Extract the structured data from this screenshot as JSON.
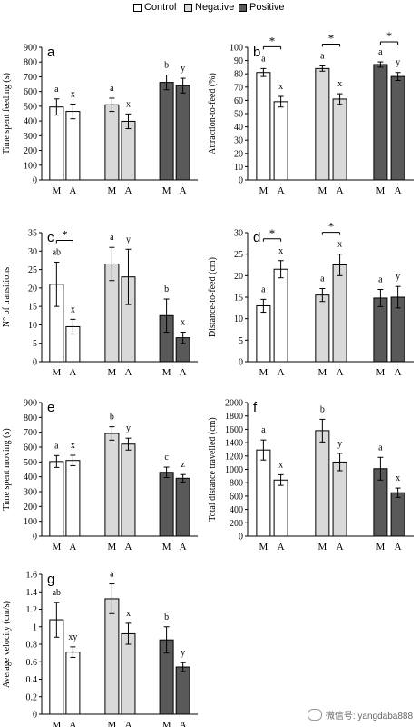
{
  "legend": {
    "items": [
      {
        "label": "Control",
        "color": "#ffffff"
      },
      {
        "label": "Negative",
        "color": "#d9d9d9"
      },
      {
        "label": "Positive",
        "color": "#595959"
      }
    ]
  },
  "watermark": {
    "text": "微信号: yangdaba888"
  },
  "chart_data": [
    {
      "type": "bar",
      "panel": "a",
      "ylabel": "Time spent feeding (s)",
      "ylim": [
        0,
        900
      ],
      "yticks": [
        0,
        100,
        200,
        300,
        400,
        500,
        600,
        700,
        800,
        900
      ],
      "categories": [
        "M",
        "A",
        "M",
        "A",
        "M",
        "A"
      ],
      "groups": [
        "Control",
        "Negative",
        "Positive"
      ],
      "values": [
        495,
        465,
        510,
        398,
        662,
        640
      ],
      "errors": [
        55,
        50,
        45,
        50,
        50,
        50
      ],
      "letters": [
        "a",
        "x",
        "a",
        "x",
        "b",
        "y"
      ],
      "sig": []
    },
    {
      "type": "bar",
      "panel": "b",
      "ylabel": "Attraction-to-feed (%)",
      "ylim": [
        0,
        100
      ],
      "yticks": [
        0,
        10,
        20,
        30,
        40,
        50,
        60,
        70,
        80,
        90,
        100
      ],
      "categories": [
        "M",
        "A",
        "M",
        "A",
        "M",
        "A"
      ],
      "groups": [
        "Control",
        "Negative",
        "Positive"
      ],
      "values": [
        81,
        59,
        84,
        61,
        87,
        78
      ],
      "errors": [
        3,
        4,
        2,
        4,
        2,
        3
      ],
      "letters": [
        "a",
        "x",
        "a",
        "x",
        "a",
        "y"
      ],
      "sig": [
        [
          0,
          1
        ],
        [
          2,
          3
        ],
        [
          4,
          5
        ]
      ]
    },
    {
      "type": "bar",
      "panel": "c",
      "ylabel": "N° of transitions",
      "ylim": [
        0,
        35
      ],
      "yticks": [
        0,
        5,
        10,
        15,
        20,
        25,
        30,
        35
      ],
      "categories": [
        "M",
        "A",
        "M",
        "A",
        "M",
        "A"
      ],
      "groups": [
        "Control",
        "Negative",
        "Positive"
      ],
      "values": [
        21,
        9.5,
        26.5,
        23,
        12.5,
        6.5
      ],
      "errors": [
        6,
        2,
        4.5,
        7.5,
        4.5,
        1.5
      ],
      "letters": [
        "ab",
        "x",
        "a",
        "y",
        "b",
        "x"
      ],
      "sig": [
        [
          0,
          1
        ]
      ]
    },
    {
      "type": "bar",
      "panel": "d",
      "ylabel": "Distance-to-feed (cm)",
      "ylim": [
        0,
        30
      ],
      "yticks": [
        0,
        5,
        10,
        15,
        20,
        25,
        30
      ],
      "categories": [
        "M",
        "A",
        "M",
        "A",
        "M",
        "A"
      ],
      "groups": [
        "Control",
        "Negative",
        "Positive"
      ],
      "values": [
        13,
        21.5,
        15.5,
        22.5,
        14.8,
        15
      ],
      "errors": [
        1.5,
        2,
        1.5,
        2.5,
        2,
        2.5
      ],
      "letters": [
        "a",
        "x",
        "a",
        "x",
        "a",
        "y"
      ],
      "sig": [
        [
          0,
          1
        ],
        [
          2,
          3
        ]
      ]
    },
    {
      "type": "bar",
      "panel": "e",
      "ylabel": "Time spent moving (s)",
      "ylim": [
        0,
        900
      ],
      "yticks": [
        0,
        100,
        200,
        300,
        400,
        500,
        600,
        700,
        800,
        900
      ],
      "categories": [
        "M",
        "A",
        "M",
        "A",
        "M",
        "A"
      ],
      "groups": [
        "Control",
        "Negative",
        "Positive"
      ],
      "values": [
        503,
        510,
        692,
        620,
        430,
        390
      ],
      "errors": [
        40,
        35,
        45,
        40,
        35,
        25
      ],
      "letters": [
        "a",
        "x",
        "b",
        "y",
        "c",
        "z"
      ],
      "sig": []
    },
    {
      "type": "bar",
      "panel": "f",
      "ylabel": "Total distance travelled (cm)",
      "ylim": [
        0,
        2000
      ],
      "yticks": [
        0,
        200,
        400,
        600,
        800,
        1000,
        1200,
        1400,
        1600,
        1800,
        2000
      ],
      "categories": [
        "M",
        "A",
        "M",
        "A",
        "M",
        "A"
      ],
      "groups": [
        "Control",
        "Negative",
        "Positive"
      ],
      "values": [
        1290,
        840,
        1580,
        1110,
        1010,
        650
      ],
      "errors": [
        150,
        80,
        170,
        130,
        170,
        70
      ],
      "letters": [
        "a",
        "x",
        "b",
        "y",
        "a",
        "x"
      ],
      "sig": []
    },
    {
      "type": "bar",
      "panel": "g",
      "ylabel": "Average velocity (cm/s)",
      "ylim": [
        0,
        1.6
      ],
      "yticks": [
        0,
        0.2,
        0.4,
        0.6,
        0.8,
        1,
        1.2,
        1.4,
        1.6
      ],
      "categories": [
        "M",
        "A",
        "M",
        "A",
        "M",
        "A"
      ],
      "groups": [
        "Control",
        "Negative",
        "Positive"
      ],
      "values": [
        1.08,
        0.71,
        1.32,
        0.92,
        0.85,
        0.54
      ],
      "errors": [
        0.2,
        0.06,
        0.17,
        0.12,
        0.15,
        0.05
      ],
      "letters": [
        "ab",
        "xy",
        "a",
        "x",
        "b",
        "y"
      ],
      "sig": []
    }
  ]
}
